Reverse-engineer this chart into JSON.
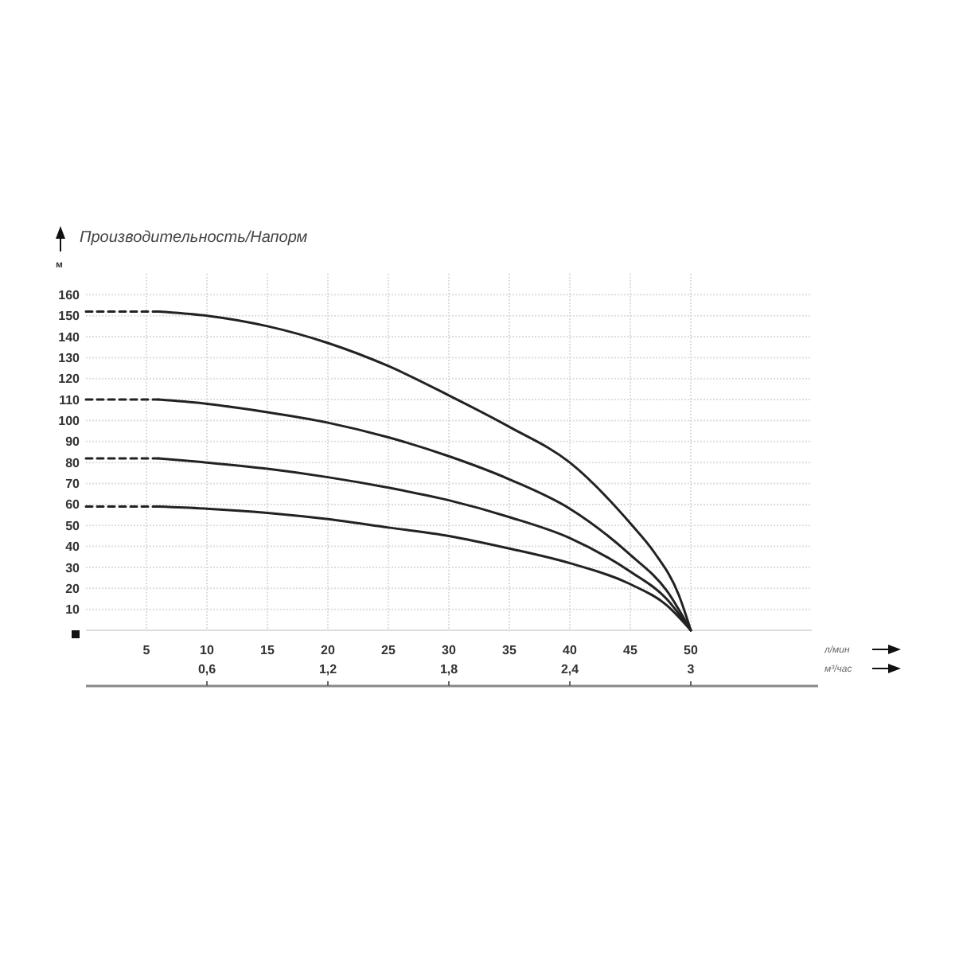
{
  "chart_data": {
    "type": "line",
    "title": "Производительность/Напорм",
    "ylabel": "м",
    "xlabel": "л/мин",
    "x2label": "м³/час",
    "xlim": [
      0,
      60
    ],
    "xticks": [
      5,
      10,
      15,
      20,
      25,
      30,
      35,
      40,
      45,
      50
    ],
    "x2lim": [
      0,
      3.6
    ],
    "x2ticks": [
      {
        "value": 0.6,
        "label": "0,6"
      },
      {
        "value": 1.2,
        "label": "1,2"
      },
      {
        "value": 1.8,
        "label": "1,8"
      },
      {
        "value": 2.4,
        "label": "2,4"
      },
      {
        "value": 3,
        "label": "3"
      }
    ],
    "ylim": [
      0,
      170
    ],
    "yticks": [
      10,
      20,
      30,
      40,
      50,
      60,
      70,
      80,
      90,
      100,
      110,
      120,
      130,
      140,
      150,
      160
    ],
    "grid": true,
    "line_style": "solid",
    "series": [
      {
        "color": "#222222",
        "line_style": "dashed",
        "x": [
          0,
          6
        ],
        "values": [
          152,
          152
        ]
      },
      {
        "color": "#222222",
        "x": [
          6,
          10,
          15,
          20,
          25,
          30,
          35,
          40,
          45,
          47,
          49,
          50
        ],
        "values": [
          152,
          150,
          145,
          137,
          126,
          112,
          97,
          80,
          51,
          37,
          17,
          0
        ]
      },
      {
        "color": "#222222",
        "line_style": "dashed",
        "x": [
          0,
          6
        ],
        "values": [
          110,
          110
        ]
      },
      {
        "color": "#222222",
        "x": [
          6,
          10,
          15,
          20,
          25,
          30,
          35,
          40,
          45,
          48,
          50
        ],
        "values": [
          110,
          108,
          104,
          99,
          92,
          83,
          72,
          58,
          36,
          19,
          0
        ]
      },
      {
        "color": "#222222",
        "line_style": "dashed",
        "x": [
          0,
          6
        ],
        "values": [
          82,
          82
        ]
      },
      {
        "color": "#222222",
        "x": [
          6,
          10,
          15,
          20,
          25,
          30,
          35,
          40,
          45,
          48,
          50
        ],
        "values": [
          82,
          80,
          77,
          73,
          68,
          62,
          54,
          44,
          28,
          15,
          0
        ]
      },
      {
        "color": "#222222",
        "line_style": "dashed",
        "x": [
          0,
          6
        ],
        "values": [
          59,
          59
        ]
      },
      {
        "color": "#222222",
        "x": [
          6,
          10,
          15,
          20,
          25,
          30,
          35,
          40,
          45,
          48,
          50
        ],
        "values": [
          59,
          58,
          56,
          53,
          49,
          45,
          39,
          32,
          22,
          12,
          0
        ]
      }
    ]
  }
}
